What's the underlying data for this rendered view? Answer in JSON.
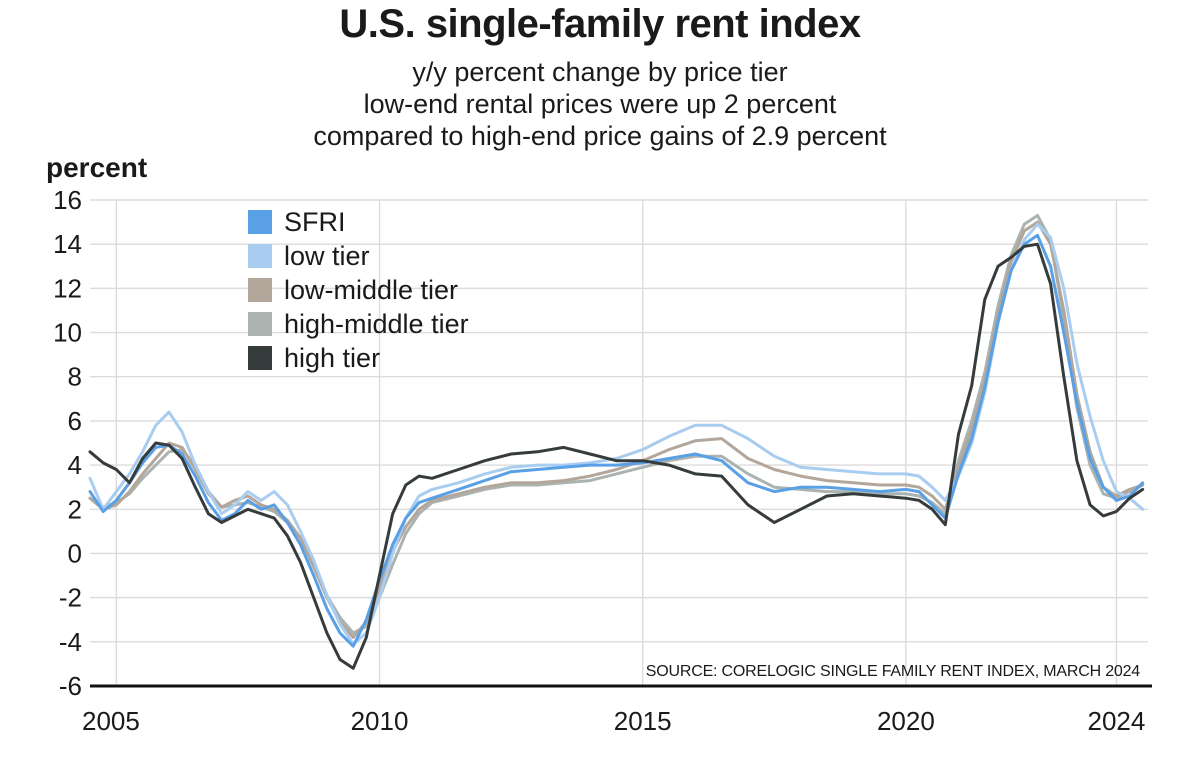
{
  "title": "U.S. single-family rent index",
  "subtitle_lines": [
    "y/y percent change by price tier",
    "low-end rental prices were up 2 percent",
    "compared to high-end price gains of 2.9 percent"
  ],
  "source": "SOURCE: CORELOGIC SINGLE FAMILY RENT INDEX, MARCH 2024",
  "colors": {
    "SFRI": "#5aa0e6",
    "low tier": "#a9cdf0",
    "low-middle tier": "#b3a69a",
    "high-middle tier": "#aab3b0",
    "high tier": "#363b3b",
    "grid": "#dcdcdc",
    "axis": "#111111"
  },
  "chart_data": {
    "type": "line",
    "title": "U.S. single-family rent index",
    "ylabel": "percent",
    "xlabel": "",
    "xlim": [
      2004.5,
      2024.6
    ],
    "ylim": [
      -6,
      16
    ],
    "x_ticks": [
      2005,
      2010,
      2015,
      2020,
      2024
    ],
    "x_tick_labels": [
      "2005",
      "2010",
      "2015",
      "2020",
      "2024"
    ],
    "y_ticks": [
      -6,
      -4,
      -2,
      0,
      2,
      4,
      6,
      8,
      10,
      12,
      14,
      16
    ],
    "y_tick_labels": [
      "-6",
      "-4",
      "-2",
      "0",
      "2",
      "4",
      "6",
      "8",
      "10",
      "12",
      "14",
      "16"
    ],
    "grid": true,
    "legend_position": "top-left",
    "x": [
      2004.5,
      2004.75,
      2005.0,
      2005.25,
      2005.5,
      2005.75,
      2006.0,
      2006.25,
      2006.5,
      2006.75,
      2007.0,
      2007.25,
      2007.5,
      2007.75,
      2008.0,
      2008.25,
      2008.5,
      2008.75,
      2009.0,
      2009.25,
      2009.5,
      2009.75,
      2010.0,
      2010.25,
      2010.5,
      2010.75,
      2011.0,
      2011.5,
      2012.0,
      2012.5,
      2013.0,
      2013.5,
      2014.0,
      2014.5,
      2015.0,
      2015.5,
      2016.0,
      2016.5,
      2017.0,
      2017.5,
      2018.0,
      2018.5,
      2019.0,
      2019.5,
      2020.0,
      2020.25,
      2020.5,
      2020.75,
      2021.0,
      2021.25,
      2021.5,
      2021.75,
      2022.0,
      2022.25,
      2022.5,
      2022.75,
      2023.0,
      2023.25,
      2023.5,
      2023.75,
      2024.0,
      2024.25,
      2024.5
    ],
    "series": [
      {
        "name": "SFRI",
        "values": [
          2.8,
          1.9,
          2.4,
          3.2,
          4.1,
          4.8,
          4.9,
          4.5,
          3.5,
          2.3,
          1.5,
          1.8,
          2.4,
          2.0,
          2.2,
          1.4,
          0.4,
          -1.0,
          -2.5,
          -3.6,
          -4.2,
          -3.0,
          -1.2,
          0.4,
          1.6,
          2.3,
          2.5,
          2.9,
          3.3,
          3.7,
          3.8,
          3.9,
          4.0,
          4.0,
          4.1,
          4.3,
          4.5,
          4.2,
          3.2,
          2.8,
          3.0,
          3.0,
          2.9,
          2.8,
          2.9,
          2.8,
          2.2,
          1.6,
          3.6,
          5.2,
          7.5,
          10.5,
          12.8,
          14.0,
          14.4,
          13.0,
          10.0,
          6.8,
          4.3,
          3.0,
          2.4,
          2.6,
          3.2
        ]
      },
      {
        "name": "low tier",
        "values": [
          3.4,
          2.0,
          2.8,
          3.6,
          4.6,
          5.8,
          6.4,
          5.5,
          4.0,
          2.8,
          1.8,
          2.2,
          2.8,
          2.4,
          2.8,
          2.2,
          1.0,
          -0.3,
          -1.9,
          -3.2,
          -4.1,
          -3.6,
          -2.0,
          0.0,
          1.6,
          2.6,
          2.9,
          3.2,
          3.6,
          3.9,
          4.0,
          4.0,
          4.1,
          4.3,
          4.7,
          5.3,
          5.8,
          5.8,
          5.2,
          4.4,
          3.9,
          3.8,
          3.7,
          3.6,
          3.6,
          3.5,
          3.0,
          2.4,
          3.5,
          5.0,
          7.3,
          10.4,
          12.8,
          14.2,
          14.9,
          14.3,
          12.0,
          8.6,
          6.2,
          4.2,
          2.8,
          2.5,
          2.0
        ]
      },
      {
        "name": "low-middle tier",
        "values": [
          2.5,
          2.0,
          2.2,
          2.8,
          3.6,
          4.3,
          5.0,
          4.8,
          3.8,
          2.7,
          2.1,
          2.4,
          2.6,
          2.2,
          2.0,
          1.5,
          0.7,
          -0.6,
          -2.0,
          -3.1,
          -3.8,
          -3.1,
          -1.6,
          0.1,
          1.2,
          2.0,
          2.4,
          2.7,
          3.0,
          3.2,
          3.2,
          3.3,
          3.5,
          3.8,
          4.2,
          4.7,
          5.1,
          5.2,
          4.3,
          3.8,
          3.5,
          3.3,
          3.2,
          3.1,
          3.1,
          3.0,
          2.6,
          2.0,
          3.9,
          5.6,
          7.8,
          10.8,
          13.2,
          14.6,
          15.0,
          14.0,
          11.0,
          7.2,
          4.6,
          3.0,
          2.6,
          2.9,
          3.1
        ]
      },
      {
        "name": "high-middle tier",
        "values": [
          2.5,
          2.1,
          2.3,
          2.7,
          3.4,
          4.0,
          4.6,
          4.7,
          4.0,
          2.8,
          2.1,
          2.2,
          2.3,
          2.1,
          1.9,
          1.4,
          0.7,
          -0.5,
          -1.9,
          -2.9,
          -3.6,
          -3.3,
          -2.0,
          -0.5,
          0.9,
          1.8,
          2.3,
          2.6,
          2.9,
          3.1,
          3.1,
          3.2,
          3.3,
          3.6,
          3.9,
          4.2,
          4.4,
          4.4,
          3.6,
          3.0,
          2.9,
          2.8,
          2.8,
          2.7,
          2.7,
          2.6,
          2.3,
          1.8,
          4.2,
          6.0,
          8.2,
          11.2,
          13.5,
          14.9,
          15.3,
          14.2,
          10.6,
          6.6,
          4.0,
          2.7,
          2.5,
          2.8,
          3.1
        ]
      },
      {
        "name": "high tier",
        "values": [
          4.6,
          4.1,
          3.8,
          3.2,
          4.3,
          5.0,
          4.9,
          4.3,
          3.0,
          1.8,
          1.4,
          1.7,
          2.0,
          1.8,
          1.6,
          0.8,
          -0.4,
          -2.0,
          -3.6,
          -4.8,
          -5.2,
          -3.8,
          -1.0,
          1.8,
          3.1,
          3.5,
          3.4,
          3.8,
          4.2,
          4.5,
          4.6,
          4.8,
          4.5,
          4.2,
          4.2,
          4.0,
          3.6,
          3.5,
          2.2,
          1.4,
          2.0,
          2.6,
          2.7,
          2.6,
          2.5,
          2.4,
          2.0,
          1.3,
          5.4,
          7.6,
          11.5,
          13.0,
          13.4,
          13.9,
          14.0,
          12.2,
          8.0,
          4.2,
          2.2,
          1.7,
          1.9,
          2.5,
          2.9
        ]
      }
    ]
  }
}
